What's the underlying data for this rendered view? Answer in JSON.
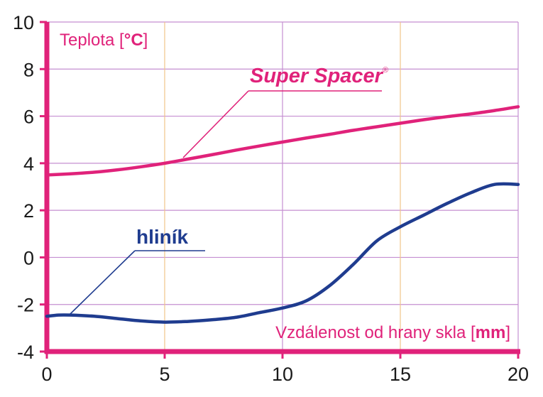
{
  "colors": {
    "axis": "#e0227a",
    "grid_major": "#c58fd1",
    "grid_minor": "#f0c58a",
    "super_spacer": "#e0227a",
    "aluminium": "#1f3c8f",
    "tick_text": "#1a1a1a"
  },
  "chart_data": {
    "type": "line",
    "title": "",
    "ylabel_prefix": "Teplota [",
    "ylabel_unit": "°C",
    "ylabel_suffix": "]",
    "xlabel_prefix": "Vzdálenost od hrany skla [",
    "xlabel_unit": "mm",
    "xlabel_suffix": "]",
    "xlim": [
      0,
      20
    ],
    "ylim": [
      -4,
      10
    ],
    "xticks": [
      0,
      5,
      10,
      15,
      20
    ],
    "xtick_labels": [
      "0",
      "5",
      "10",
      "15",
      "20"
    ],
    "yticks": [
      10,
      8,
      6,
      4,
      2,
      0,
      -2,
      -4
    ],
    "ytick_labels": [
      "10",
      "8",
      "6",
      "4",
      "2",
      "0",
      "-2",
      "-4"
    ],
    "grid": true,
    "series": [
      {
        "name": "Super Spacer®",
        "label_main": "Super Spacer",
        "label_mark": "®",
        "x": [
          0,
          1,
          2,
          3,
          4,
          5,
          6,
          7,
          8,
          9,
          10,
          11,
          12,
          13,
          14,
          15,
          16,
          17,
          18,
          19,
          20
        ],
        "y": [
          3.5,
          3.55,
          3.62,
          3.72,
          3.85,
          4.0,
          4.18,
          4.36,
          4.55,
          4.73,
          4.9,
          5.07,
          5.23,
          5.4,
          5.55,
          5.7,
          5.85,
          5.98,
          6.1,
          6.24,
          6.4
        ]
      },
      {
        "name": "hliník",
        "label_main": "hliník",
        "label_mark": "",
        "x": [
          0,
          0.5,
          1,
          2,
          3,
          4,
          5,
          6,
          7,
          8,
          9,
          10,
          11,
          12,
          13,
          14,
          15,
          16,
          17,
          18,
          19,
          20
        ],
        "y": [
          -2.5,
          -2.45,
          -2.45,
          -2.5,
          -2.6,
          -2.7,
          -2.75,
          -2.72,
          -2.65,
          -2.55,
          -2.35,
          -2.15,
          -1.85,
          -1.2,
          -0.3,
          0.7,
          1.3,
          1.8,
          2.3,
          2.75,
          3.1,
          3.1
        ]
      }
    ]
  }
}
